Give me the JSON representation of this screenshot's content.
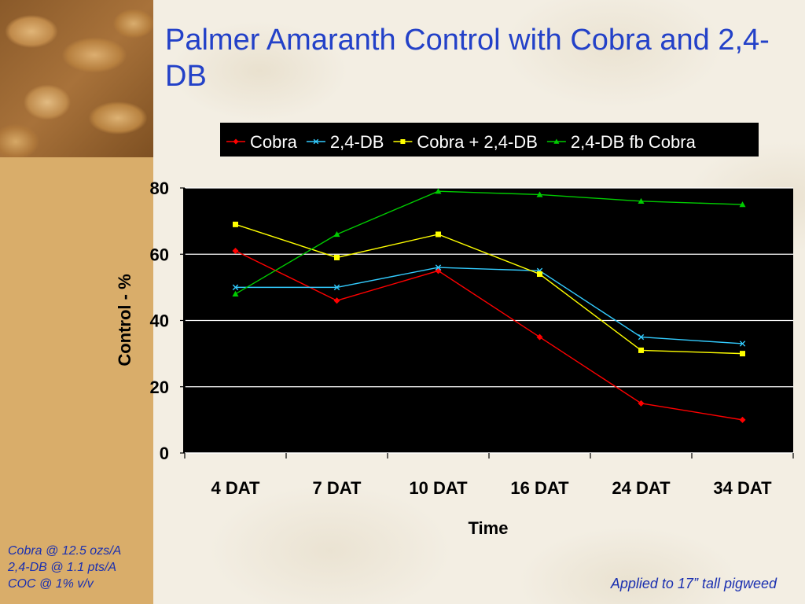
{
  "slide": {
    "title": "Palmer Amaranth Control with Cobra and 2,4-DB",
    "notes": [
      "Cobra @ 12.5 ozs/A",
      "2,4-DB @ 1.1 pts/A",
      "COC @ 1% v/v"
    ],
    "footnote": "Applied to 17” tall pigweed"
  },
  "chart_data": {
    "type": "line",
    "title": "",
    "xlabel": "Time",
    "ylabel": "Control - %",
    "categories": [
      "4 DAT",
      "7 DAT",
      "10 DAT",
      "16 DAT",
      "24 DAT",
      "34 DAT"
    ],
    "ylim": [
      0,
      80
    ],
    "yticks": [
      0,
      20,
      40,
      60,
      80
    ],
    "grid": true,
    "background": "#000000",
    "legend_position": "top",
    "series": [
      {
        "name": "Cobra",
        "color": "#ff0000",
        "marker": "diamond",
        "values": [
          61,
          46,
          55,
          35,
          15,
          10
        ]
      },
      {
        "name": "2,4-DB",
        "color": "#33ccff",
        "marker": "x",
        "values": [
          50,
          50,
          56,
          55,
          35,
          33
        ]
      },
      {
        "name": "Cobra + 2,4-DB",
        "color": "#ffff00",
        "marker": "square",
        "values": [
          69,
          59,
          66,
          54,
          31,
          30
        ]
      },
      {
        "name": "2,4-DB fb Cobra",
        "color": "#00cc00",
        "marker": "triangle",
        "values": [
          48,
          66,
          79,
          78,
          76,
          75
        ]
      }
    ]
  }
}
